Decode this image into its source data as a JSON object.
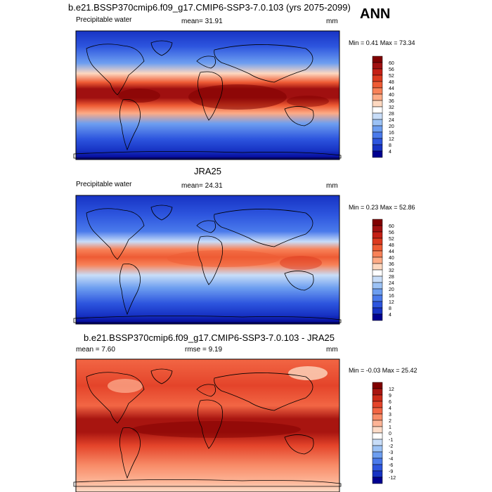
{
  "page": {
    "top_title": "b.e21.BSSP370cmip6.f09_g17.CMIP6-SSP3-7.0.103 (yrs 2075-2099)",
    "season": "ANN",
    "mid_title": "JRA25",
    "diff_title": "b.e21.BSSP370cmip6.f09_g17.CMIP6-SSP3-7.0.103 - JRA25"
  },
  "panels": [
    {
      "id": "model",
      "left_label": "Precipitable water",
      "mean_label": "mean=  31.91",
      "units": "mm",
      "minmax": "Min =   0.41 Max =  73.34",
      "legend_labels": [
        "60",
        "56",
        "52",
        "48",
        "44",
        "40",
        "36",
        "32",
        "28",
        "24",
        "20",
        "16",
        "12",
        "8",
        "4"
      ],
      "legend_colors": [
        "#800000",
        "#a01010",
        "#c42015",
        "#dc3a1f",
        "#ee5b34",
        "#f88258",
        "#fdab86",
        "#fdd8c0",
        "#ffffff",
        "#c8ddf8",
        "#9cc2f5",
        "#6d9ef0",
        "#4a7aeb",
        "#2d55de",
        "#1733c4",
        "#000090"
      ]
    },
    {
      "id": "obs",
      "left_label": "Precipitable water",
      "mean_label": "mean=  24.31",
      "units": "mm",
      "minmax": "Min =   0.23 Max =  52.86",
      "legend_labels": [
        "60",
        "56",
        "52",
        "48",
        "44",
        "40",
        "36",
        "32",
        "28",
        "24",
        "20",
        "16",
        "12",
        "8",
        "4"
      ],
      "legend_colors": [
        "#800000",
        "#a01010",
        "#c42015",
        "#dc3a1f",
        "#ee5b34",
        "#f88258",
        "#fdab86",
        "#fdd8c0",
        "#ffffff",
        "#c8ddf8",
        "#9cc2f5",
        "#6d9ef0",
        "#4a7aeb",
        "#2d55de",
        "#1733c4",
        "#000090"
      ]
    },
    {
      "id": "diff",
      "left_label": "mean =   7.60",
      "mean_label": "rmse =   9.19",
      "units": "mm",
      "minmax": "Min =  -0.03 Max =  25.42",
      "legend_labels": [
        "12",
        "9",
        "6",
        "4",
        "3",
        "2",
        "1",
        "0",
        "-1",
        "-2",
        "-3",
        "-4",
        "-6",
        "-9",
        "-12"
      ],
      "legend_colors": [
        "#800000",
        "#a81510",
        "#cc2a18",
        "#e4442a",
        "#f26644",
        "#f88c68",
        "#fdb496",
        "#fddcc8",
        "#ffffff",
        "#c8ddf8",
        "#9cc2f5",
        "#6d9ef0",
        "#4a7aeb",
        "#2d55de",
        "#1733c4",
        "#000090"
      ]
    }
  ]
}
